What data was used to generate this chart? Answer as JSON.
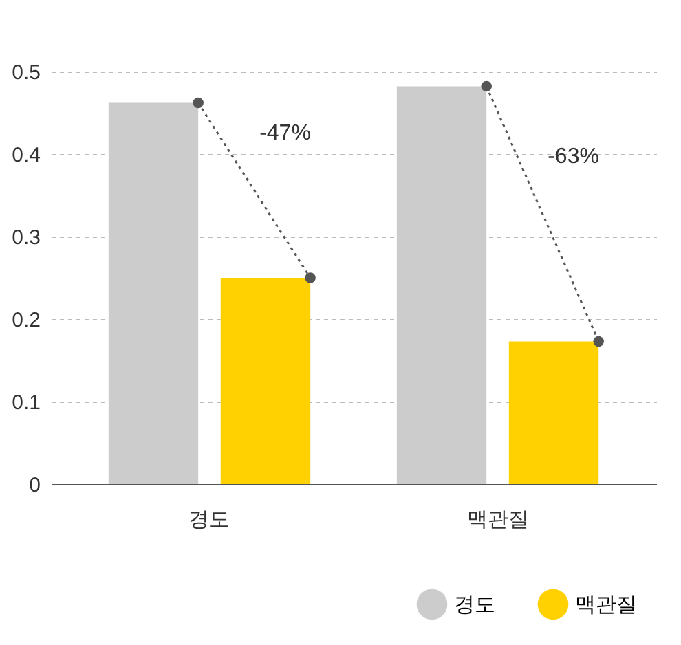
{
  "chart_data": {
    "type": "bar",
    "categories": [
      "경도",
      "맥관질"
    ],
    "series": [
      {
        "name": "경도",
        "color": "#cccccc",
        "values": [
          0.462,
          0.482
        ]
      },
      {
        "name": "맥관질",
        "color": "#ffd100",
        "values": [
          0.25,
          0.173
        ]
      }
    ],
    "ylim": [
      0,
      0.5
    ],
    "yticks": [
      0,
      0.1,
      0.2,
      0.3,
      0.4,
      0.5
    ],
    "grid": "y",
    "legend": "bottom right",
    "annotations": [
      "-47%",
      "-63%"
    ]
  }
}
